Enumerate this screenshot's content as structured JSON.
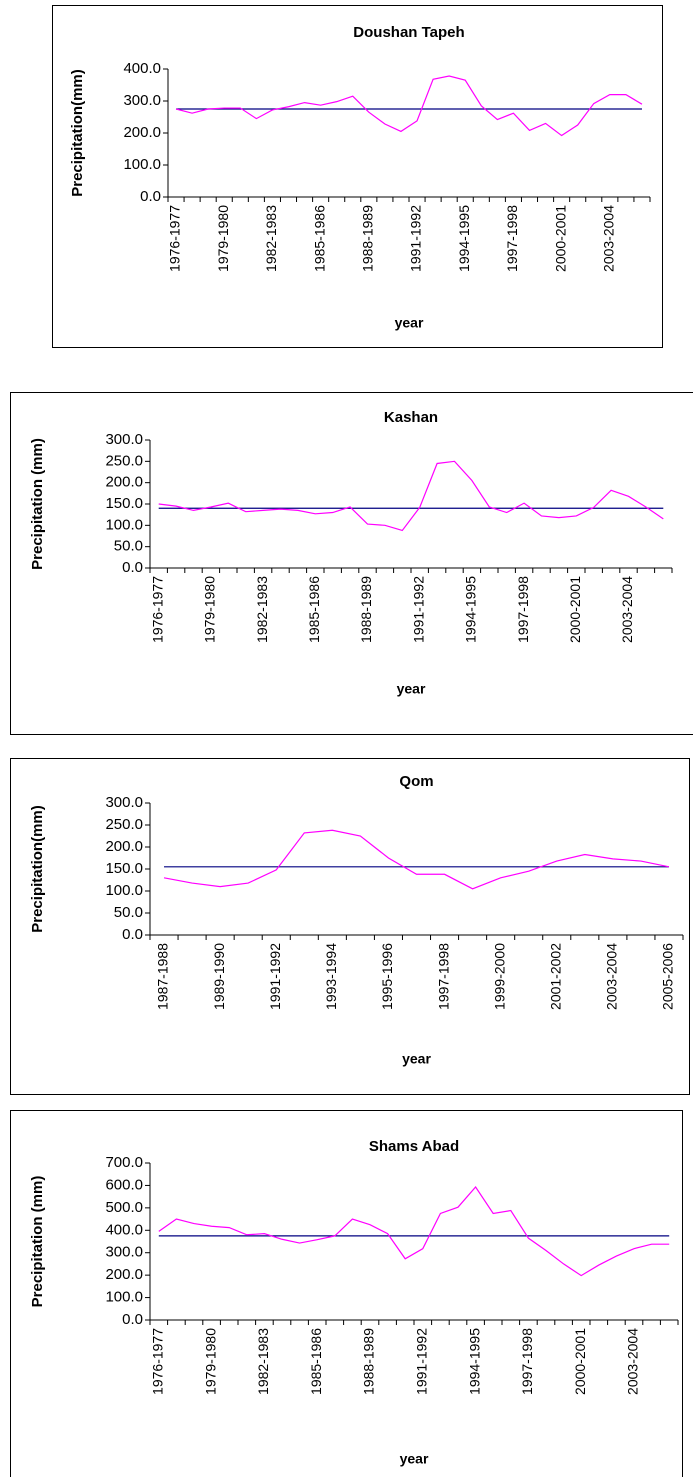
{
  "chart_data": [
    {
      "type": "line",
      "title": "Doushan Tapeh",
      "x_label": "year",
      "y_label": "Precipitation(mm)",
      "categories": [
        "1976-1977",
        null,
        null,
        "1979-1980",
        null,
        null,
        "1982-1983",
        null,
        null,
        "1985-1986",
        null,
        null,
        "1988-1989",
        null,
        null,
        "1991-1992",
        null,
        null,
        "1994-1995",
        null,
        null,
        "1997-1998",
        null,
        null,
        "2000-2001",
        null,
        null,
        "2003-2004",
        null,
        null
      ],
      "series": [
        {
          "color": "#ff00ff",
          "values": [
            275,
            262,
            275,
            278,
            278,
            245,
            272,
            282,
            295,
            287,
            298,
            315,
            265,
            228,
            205,
            238,
            368,
            378,
            365,
            285,
            242,
            262,
            208,
            230,
            192,
            225,
            292,
            320,
            320,
            290
          ]
        },
        {
          "color": "#000080",
          "values": [
            275,
            275,
            275,
            275,
            275,
            275,
            275,
            275,
            275,
            275,
            275,
            275,
            275,
            275,
            275,
            275,
            275,
            275,
            275,
            275,
            275,
            275,
            275,
            275,
            275,
            275,
            275,
            275,
            275,
            275
          ]
        }
      ],
      "ylim": [
        0,
        400
      ],
      "yticks": [
        {
          "value": 0,
          "label": "0.0"
        },
        {
          "value": 100,
          "label": "100.0"
        },
        {
          "value": 200,
          "label": "200.0"
        },
        {
          "value": 300,
          "label": "300.0"
        },
        {
          "value": 400,
          "label": "400.0"
        }
      ]
    },
    {
      "type": "line",
      "title": "Kashan",
      "x_label": "year",
      "y_label": "Precipitation (mm)",
      "categories": [
        "1976-1977",
        null,
        null,
        "1979-1980",
        null,
        null,
        "1982-1983",
        null,
        null,
        "1985-1986",
        null,
        null,
        "1988-1989",
        null,
        null,
        "1991-1992",
        null,
        null,
        "1994-1995",
        null,
        null,
        "1997-1998",
        null,
        null,
        "2000-2001",
        null,
        null,
        "2003-2004",
        null,
        null
      ],
      "series": [
        {
          "color": "#ff00ff",
          "values": [
            150,
            145,
            135,
            143,
            152,
            132,
            135,
            138,
            135,
            127,
            130,
            143,
            103,
            100,
            88,
            142,
            245,
            250,
            205,
            143,
            130,
            152,
            122,
            118,
            122,
            142,
            182,
            168,
            143,
            115
          ]
        },
        {
          "color": "#000080",
          "values": [
            140,
            140,
            140,
            140,
            140,
            140,
            140,
            140,
            140,
            140,
            140,
            140,
            140,
            140,
            140,
            140,
            140,
            140,
            140,
            140,
            140,
            140,
            140,
            140,
            140,
            140,
            140,
            140,
            140,
            140
          ]
        }
      ],
      "ylim": [
        0,
        300
      ],
      "yticks": [
        {
          "value": 0,
          "label": "0.0"
        },
        {
          "value": 50,
          "label": "50.0"
        },
        {
          "value": 100,
          "label": "100.0"
        },
        {
          "value": 150,
          "label": "150.0"
        },
        {
          "value": 200,
          "label": "200.0"
        },
        {
          "value": 250,
          "label": "250.0"
        },
        {
          "value": 300,
          "label": "300.0"
        }
      ]
    },
    {
      "type": "line",
      "title": "Qom",
      "x_label": "year",
      "y_label": "Precipitation(mm)",
      "categories": [
        "1987-1988",
        null,
        "1989-1990",
        null,
        "1991-1992",
        null,
        "1993-1994",
        null,
        "1995-1996",
        null,
        "1997-1998",
        null,
        "1999-2000",
        null,
        "2001-2002",
        null,
        "2003-2004",
        null,
        "2005-2006"
      ],
      "series": [
        {
          "color": "#ff00ff",
          "values": [
            130,
            118,
            110,
            118,
            148,
            232,
            238,
            225,
            175,
            138,
            138,
            105,
            130,
            145,
            168,
            183,
            173,
            168,
            155
          ]
        },
        {
          "color": "#000080",
          "values": [
            155,
            155,
            155,
            155,
            155,
            155,
            155,
            155,
            155,
            155,
            155,
            155,
            155,
            155,
            155,
            155,
            155,
            155,
            155
          ]
        }
      ],
      "ylim": [
        0,
        300
      ],
      "yticks": [
        {
          "value": 0,
          "label": "0.0"
        },
        {
          "value": 50,
          "label": "50.0"
        },
        {
          "value": 100,
          "label": "100.0"
        },
        {
          "value": 150,
          "label": "150.0"
        },
        {
          "value": 200,
          "label": "200.0"
        },
        {
          "value": 250,
          "label": "250.0"
        },
        {
          "value": 300,
          "label": "300.0"
        }
      ]
    },
    {
      "type": "line",
      "title": "Shams Abad",
      "x_label": "year",
      "y_label": "Precipitation (mm)",
      "categories": [
        "1976-1977",
        null,
        null,
        "1979-1980",
        null,
        null,
        "1982-1983",
        null,
        null,
        "1985-1986",
        null,
        null,
        "1988-1989",
        null,
        null,
        "1991-1992",
        null,
        null,
        "1994-1995",
        null,
        null,
        "1997-1998",
        null,
        null,
        "2000-2001",
        null,
        null,
        "2003-2004",
        null,
        null
      ],
      "series": [
        {
          "color": "#ff00ff",
          "values": [
            395,
            450,
            430,
            418,
            412,
            380,
            385,
            360,
            343,
            358,
            375,
            450,
            425,
            385,
            273,
            318,
            475,
            503,
            593,
            475,
            488,
            365,
            310,
            250,
            198,
            245,
            285,
            318,
            338,
            338
          ]
        },
        {
          "color": "#000080",
          "values": [
            375,
            375,
            375,
            375,
            375,
            375,
            375,
            375,
            375,
            375,
            375,
            375,
            375,
            375,
            375,
            375,
            375,
            375,
            375,
            375,
            375,
            375,
            375,
            375,
            375,
            375,
            375,
            375,
            375,
            375
          ]
        }
      ],
      "ylim": [
        0,
        700
      ],
      "yticks": [
        {
          "value": 0,
          "label": "0.0"
        },
        {
          "value": 100,
          "label": "100.0"
        },
        {
          "value": 200,
          "label": "200.0"
        },
        {
          "value": 300,
          "label": "300.0"
        },
        {
          "value": 400,
          "label": "400.0"
        },
        {
          "value": 500,
          "label": "500.0"
        },
        {
          "value": 600,
          "label": "600.0"
        },
        {
          "value": 700,
          "label": "700.0"
        }
      ]
    }
  ]
}
